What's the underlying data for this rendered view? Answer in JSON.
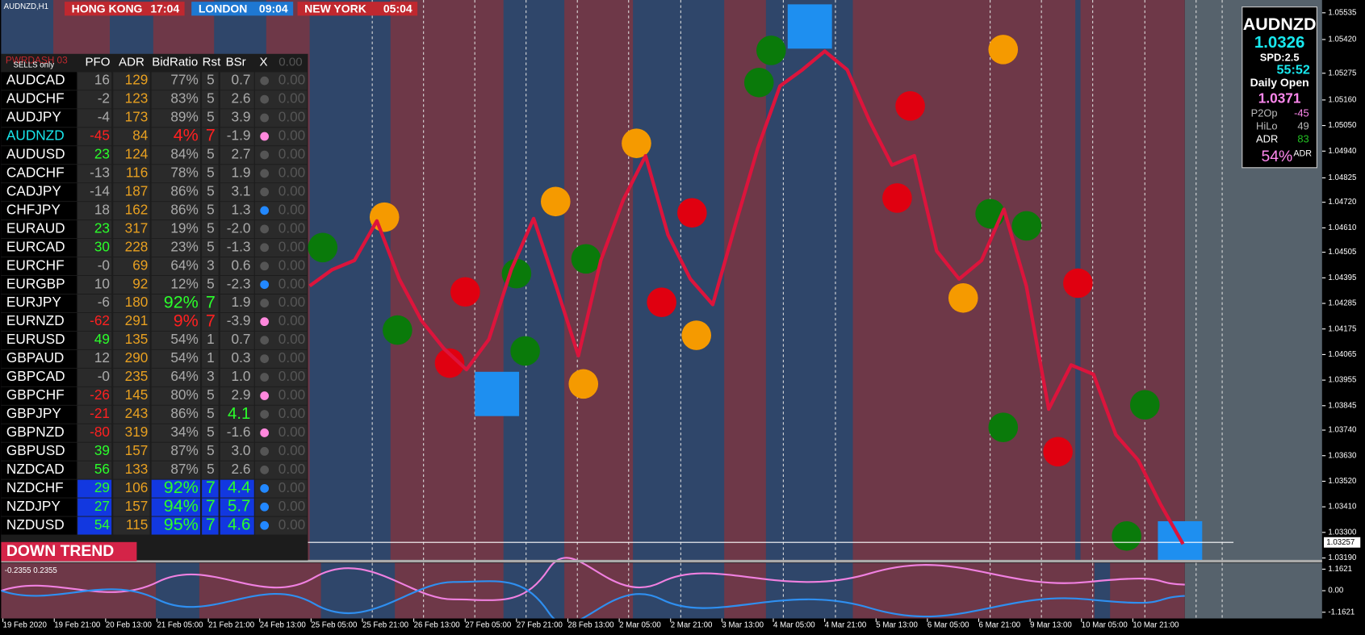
{
  "header": {
    "symbol_period": "AUDNZD,H1",
    "sessions": [
      {
        "name": "HONG KONG",
        "time": "17:04",
        "color": "#c0282f"
      },
      {
        "name": "LONDON",
        "time": "09:04",
        "color": "#1e78d2"
      },
      {
        "name": "NEW YORK",
        "time": "05:04",
        "color": "#c0282f"
      }
    ]
  },
  "table": {
    "title": "PWRDASH 03",
    "subtitle": "SELLS only",
    "headers": [
      "PFO",
      "ADR",
      "BidRatio",
      "Rst",
      "BSr",
      "X",
      "0.00"
    ],
    "rows": [
      {
        "pair": "AUDCAD",
        "pfo": "16",
        "adr": "129",
        "bid_ratio": "77%",
        "rst": "5",
        "bsr": "0.7",
        "zero": "0.00",
        "dot": "#555555",
        "signal": "none"
      },
      {
        "pair": "AUDCHF",
        "pfo": "-2",
        "adr": "123",
        "bid_ratio": "83%",
        "rst": "5",
        "bsr": "2.6",
        "zero": "0.00",
        "dot": "#555555",
        "signal": "none"
      },
      {
        "pair": "AUDJPY",
        "pfo": "-4",
        "adr": "173",
        "bid_ratio": "89%",
        "rst": "5",
        "bsr": "3.9",
        "zero": "0.00",
        "dot": "#555555",
        "signal": "none"
      },
      {
        "pair": "AUDNZD",
        "pfo": "-45",
        "adr": "84",
        "bid_ratio": "4%",
        "rst": "7",
        "bsr": "-1.9",
        "zero": "0.00",
        "dot": "#ff88dd",
        "signal": "sell"
      },
      {
        "pair": "AUDUSD",
        "pfo": "23",
        "adr": "124",
        "bid_ratio": "84%",
        "rst": "5",
        "bsr": "2.7",
        "zero": "0.00",
        "dot": "#555555",
        "signal": "none"
      },
      {
        "pair": "CADCHF",
        "pfo": "-13",
        "adr": "116",
        "bid_ratio": "78%",
        "rst": "5",
        "bsr": "1.9",
        "zero": "0.00",
        "dot": "#555555",
        "signal": "none"
      },
      {
        "pair": "CADJPY",
        "pfo": "-14",
        "adr": "187",
        "bid_ratio": "86%",
        "rst": "5",
        "bsr": "3.1",
        "zero": "0.00",
        "dot": "#555555",
        "signal": "none"
      },
      {
        "pair": "CHFJPY",
        "pfo": "18",
        "adr": "162",
        "bid_ratio": "86%",
        "rst": "5",
        "bsr": "1.3",
        "zero": "0.00",
        "dot": "#2288ff",
        "signal": "none"
      },
      {
        "pair": "EURAUD",
        "pfo": "23",
        "adr": "317",
        "bid_ratio": "19%",
        "rst": "5",
        "bsr": "-2.0",
        "zero": "0.00",
        "dot": "#555555",
        "signal": "none"
      },
      {
        "pair": "EURCAD",
        "pfo": "30",
        "adr": "228",
        "bid_ratio": "23%",
        "rst": "5",
        "bsr": "-1.3",
        "zero": "0.00",
        "dot": "#555555",
        "signal": "none"
      },
      {
        "pair": "EURCHF",
        "pfo": "-0",
        "adr": "69",
        "bid_ratio": "64%",
        "rst": "3",
        "bsr": "0.6",
        "zero": "0.00",
        "dot": "#555555",
        "signal": "none"
      },
      {
        "pair": "EURGBP",
        "pfo": "10",
        "adr": "92",
        "bid_ratio": "12%",
        "rst": "5",
        "bsr": "-2.3",
        "zero": "0.00",
        "dot": "#2288ff",
        "signal": "none"
      },
      {
        "pair": "EURJPY",
        "pfo": "-6",
        "adr": "180",
        "bid_ratio": "92%",
        "rst": "7",
        "bsr": "1.9",
        "zero": "0.00",
        "dot": "#555555",
        "signal": "strong"
      },
      {
        "pair": "EURNZD",
        "pfo": "-62",
        "adr": "291",
        "bid_ratio": "9%",
        "rst": "7",
        "bsr": "-3.9",
        "zero": "0.00",
        "dot": "#ff88dd",
        "signal": "sell"
      },
      {
        "pair": "EURUSD",
        "pfo": "49",
        "adr": "135",
        "bid_ratio": "54%",
        "rst": "1",
        "bsr": "0.7",
        "zero": "0.00",
        "dot": "#555555",
        "signal": "none"
      },
      {
        "pair": "GBPAUD",
        "pfo": "12",
        "adr": "290",
        "bid_ratio": "54%",
        "rst": "1",
        "bsr": "0.3",
        "zero": "0.00",
        "dot": "#555555",
        "signal": "none"
      },
      {
        "pair": "GBPCAD",
        "pfo": "-0",
        "adr": "235",
        "bid_ratio": "64%",
        "rst": "3",
        "bsr": "1.0",
        "zero": "0.00",
        "dot": "#555555",
        "signal": "none"
      },
      {
        "pair": "GBPCHF",
        "pfo": "-26",
        "adr": "145",
        "bid_ratio": "80%",
        "rst": "5",
        "bsr": "2.9",
        "zero": "0.00",
        "dot": "#ff88dd",
        "signal": "none"
      },
      {
        "pair": "GBPJPY",
        "pfo": "-21",
        "adr": "243",
        "bid_ratio": "86%",
        "rst": "5",
        "bsr": "4.1",
        "zero": "0.00",
        "dot": "#555555",
        "signal": "none"
      },
      {
        "pair": "GBPNZD",
        "pfo": "-80",
        "adr": "319",
        "bid_ratio": "34%",
        "rst": "5",
        "bsr": "-1.6",
        "zero": "0.00",
        "dot": "#ff88dd",
        "signal": "none"
      },
      {
        "pair": "GBPUSD",
        "pfo": "39",
        "adr": "157",
        "bid_ratio": "87%",
        "rst": "5",
        "bsr": "3.0",
        "zero": "0.00",
        "dot": "#555555",
        "signal": "none"
      },
      {
        "pair": "NZDCAD",
        "pfo": "56",
        "adr": "133",
        "bid_ratio": "87%",
        "rst": "5",
        "bsr": "2.6",
        "zero": "0.00",
        "dot": "#555555",
        "signal": "none"
      },
      {
        "pair": "NZDCHF",
        "pfo": "29",
        "adr": "106",
        "bid_ratio": "92%",
        "rst": "7",
        "bsr": "4.4",
        "zero": "0.00",
        "dot": "#2288ff",
        "signal": "buy"
      },
      {
        "pair": "NZDJPY",
        "pfo": "27",
        "adr": "157",
        "bid_ratio": "94%",
        "rst": "7",
        "bsr": "5.7",
        "zero": "0.00",
        "dot": "#2288ff",
        "signal": "buy"
      },
      {
        "pair": "NZDUSD",
        "pfo": "54",
        "adr": "115",
        "bid_ratio": "95%",
        "rst": "7",
        "bsr": "4.6",
        "zero": "0.00",
        "dot": "#2288ff",
        "signal": "buy"
      }
    ],
    "trend": "DOWN TREND"
  },
  "info_panel": {
    "symbol": "AUDNZD",
    "price": "1.0326",
    "spread": "SPD:2.5",
    "timer": "55:52",
    "daily_open_label": "Daily Open",
    "daily_open": "1.0371",
    "p2op_label": "P2Op",
    "p2op": "-45",
    "hilo_label": "HiLo",
    "hilo": "49",
    "adr_label": "ADR",
    "adr": "83",
    "adr_pct": "54%",
    "adr_pct_label": "ADR"
  },
  "price_chart": {
    "ylim": [
      1.0318,
      1.0559
    ],
    "yticks": [
      {
        "value": 1.05535,
        "label": "1.05535"
      },
      {
        "value": 1.0542,
        "label": "1.05420"
      },
      {
        "value": 1.05275,
        "label": "1.05275"
      },
      {
        "value": 1.0516,
        "label": "1.05160"
      },
      {
        "value": 1.0505,
        "label": "1.05050"
      },
      {
        "value": 1.0494,
        "label": "1.04940"
      },
      {
        "value": 1.04825,
        "label": "1.04825"
      },
      {
        "value": 1.0472,
        "label": "1.04720"
      },
      {
        "value": 1.0461,
        "label": "1.04610"
      },
      {
        "value": 1.04505,
        "label": "1.04505"
      },
      {
        "value": 1.04395,
        "label": "1.04395"
      },
      {
        "value": 1.04285,
        "label": "1.04285"
      },
      {
        "value": 1.04175,
        "label": "1.04175"
      },
      {
        "value": 1.04065,
        "label": "1.04065"
      },
      {
        "value": 1.03955,
        "label": "1.03955"
      },
      {
        "value": 1.03845,
        "label": "1.03845"
      },
      {
        "value": 1.0374,
        "label": "1.03740"
      },
      {
        "value": 1.0363,
        "label": "1.03630"
      },
      {
        "value": 1.0352,
        "label": "1.03520"
      },
      {
        "value": 1.0341,
        "label": "1.03410"
      },
      {
        "value": 1.033,
        "label": "1.03300"
      },
      {
        "value": 1.0319,
        "label": "1.03190"
      }
    ],
    "current_price": 1.03257,
    "close_values": [
      1.0436,
      1.0443,
      1.0447,
      1.0464,
      1.0439,
      1.0421,
      1.0409,
      1.04,
      1.0413,
      1.0443,
      1.0465,
      1.0436,
      1.0406,
      1.0447,
      1.0473,
      1.0492,
      1.0458,
      1.0439,
      1.0428,
      1.0462,
      1.0495,
      1.0522,
      1.0529,
      1.0537,
      1.0529,
      1.0507,
      1.0488,
      1.0492,
      1.0451,
      1.0439,
      1.0447,
      1.0469,
      1.0436,
      1.0383,
      1.0402,
      1.0398,
      1.0372,
      1.0361,
      1.0342,
      1.0325
    ],
    "line_color": "#dc143c",
    "dates": [
      "19 Feb 2020",
      "19 Feb 21:00",
      "20 Feb 13:00",
      "21 Feb 05:00",
      "21 Feb 21:00",
      "24 Feb 13:00",
      "25 Feb 05:00",
      "25 Feb 21:00",
      "26 Feb 13:00",
      "27 Feb 05:00",
      "27 Feb 21:00",
      "28 Feb 13:00",
      "2 Mar 05:00",
      "2 Mar 21:00",
      "3 Mar 13:00",
      "4 Mar 05:00",
      "4 Mar 21:00",
      "5 Mar 13:00",
      "6 Mar 05:00",
      "6 Mar 21:00",
      "9 Mar 13:00",
      "10 Mar 05:00",
      "10 Mar 21:00"
    ]
  },
  "oscillator": {
    "label": "-0.2355 0.2355",
    "ylim": [
      -1.5,
      1.5
    ],
    "yticks": [
      1.1621,
      {
        "value": 0,
        "label": "0.00"
      },
      -1.1621
    ]
  }
}
